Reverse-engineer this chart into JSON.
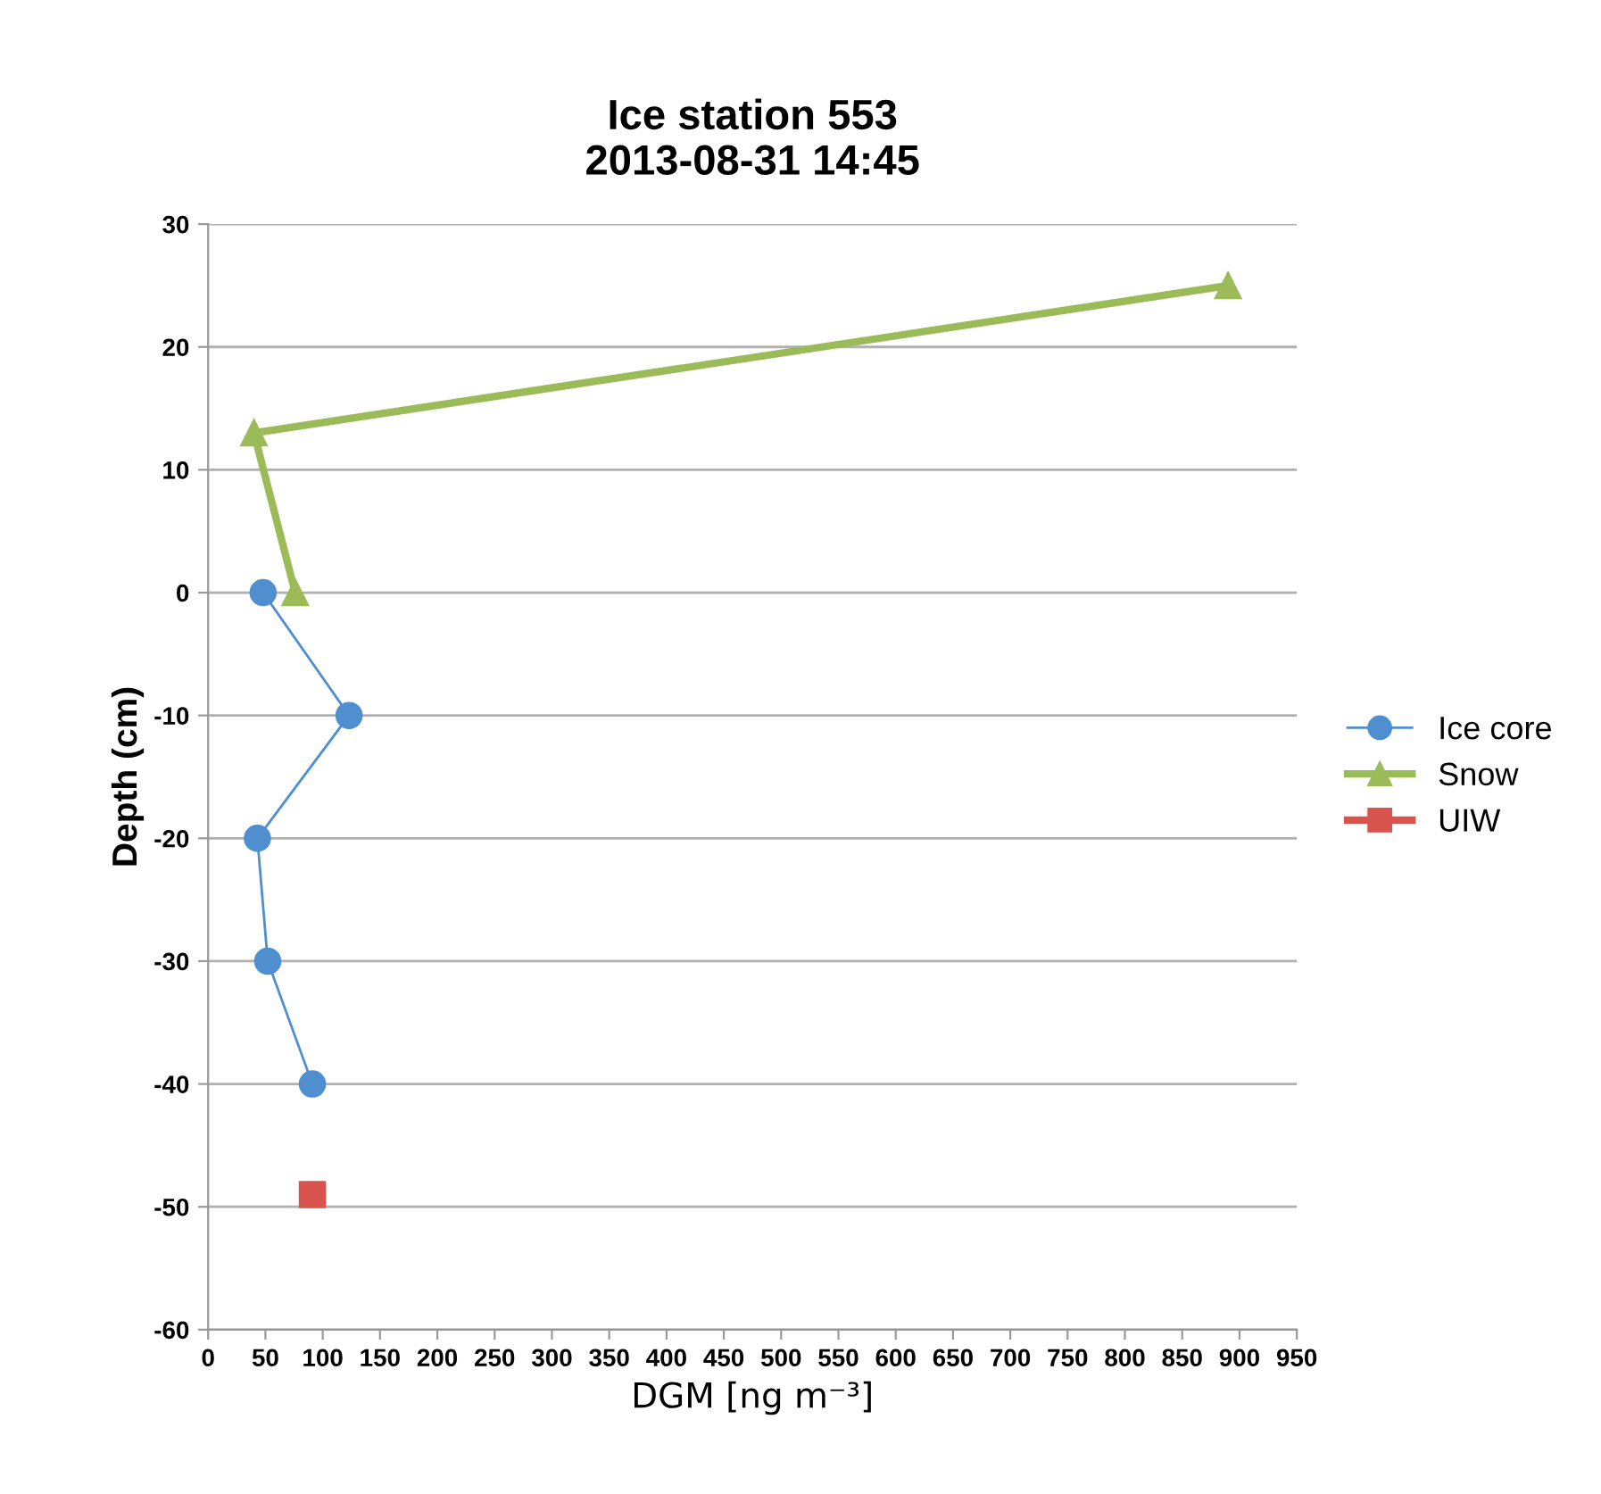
{
  "chart_data": {
    "type": "line",
    "title": "Ice station 553\n2013-08-31 14:45",
    "xlabel": "DGM [ng m⁻³]",
    "ylabel": "Depth (cm)",
    "xlim": [
      0,
      950
    ],
    "xticks": [
      0,
      50,
      100,
      150,
      200,
      250,
      300,
      350,
      400,
      450,
      500,
      550,
      600,
      650,
      700,
      750,
      800,
      850,
      900,
      950
    ],
    "ylim": [
      -60,
      30
    ],
    "yticks": [
      -60,
      -50,
      -40,
      -30,
      -20,
      -10,
      0,
      10,
      20,
      30
    ],
    "grid": "y",
    "legend": "right",
    "series": [
      {
        "name": "Ice core",
        "color": "#4f8fcf",
        "marker": "circle",
        "x": [
          48,
          123,
          43,
          52,
          91
        ],
        "values": [
          0,
          -10,
          -20,
          -30,
          -40
        ]
      },
      {
        "name": "Snow",
        "color": "#9bbb59",
        "marker": "triangle",
        "x": [
          76,
          40,
          890
        ],
        "values": [
          0,
          13,
          25
        ]
      },
      {
        "name": "UIW",
        "color": "#d9534f",
        "marker": "square",
        "type": "scatter",
        "x": [
          91
        ],
        "values": [
          -49
        ]
      }
    ]
  }
}
